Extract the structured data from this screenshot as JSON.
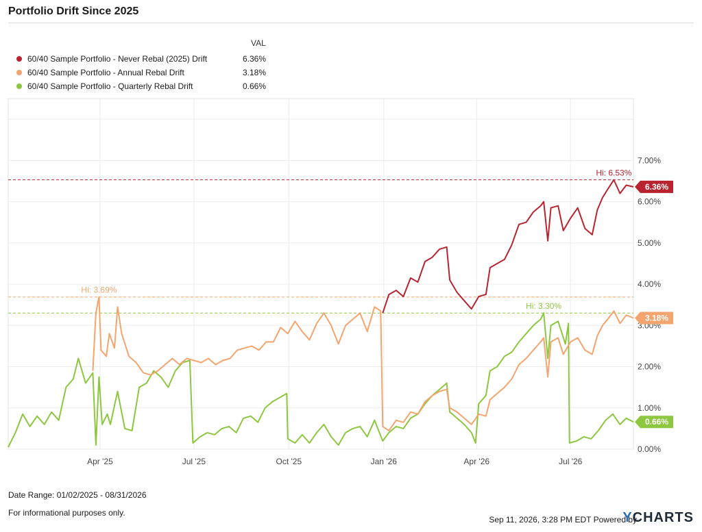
{
  "title": "Portfolio Drift Since 2025",
  "legend": {
    "header": "VAL",
    "items": [
      {
        "label": "60/40 Sample Portfolio - Never Rebal (2025) Drift",
        "value": "6.36%",
        "color": "#b8232f"
      },
      {
        "label": "60/40 Sample Portfolio - Annual Rebal Drift",
        "value": "3.18%",
        "color": "#f4a46e"
      },
      {
        "label": "60/40 Sample Portfolio - Quarterly Rebal Drift",
        "value": "0.66%",
        "color": "#8dc63f"
      }
    ]
  },
  "chart_data": {
    "type": "line",
    "x_ticks": [
      "Apr '25",
      "Jul '25",
      "Oct '25",
      "Jan '26",
      "Apr '26",
      "Jul '26"
    ],
    "y_ticks": [
      "0.00%",
      "1.00%",
      "2.00%",
      "3.00%",
      "4.00%",
      "5.00%",
      "6.00%",
      "7.00%"
    ],
    "ylim": [
      0,
      8.5
    ],
    "x_range": [
      "2025-01-02",
      "2026-08-31"
    ],
    "grid": true,
    "series": [
      {
        "name": "60/40 Sample Portfolio - Never Rebal (2025) Drift",
        "color": "#b8232f",
        "last_label": "6.36%",
        "hi_label": "Hi: 6.53%",
        "hi": 6.53,
        "points": [
          [
            "2025-12-31",
            3.3
          ],
          [
            "2026-01-06",
            3.75
          ],
          [
            "2026-01-13",
            3.85
          ],
          [
            "2026-01-20",
            3.7
          ],
          [
            "2026-01-27",
            4.15
          ],
          [
            "2026-02-03",
            4.05
          ],
          [
            "2026-02-10",
            4.55
          ],
          [
            "2026-02-17",
            4.65
          ],
          [
            "2026-02-24",
            4.85
          ],
          [
            "2026-03-03",
            4.9
          ],
          [
            "2026-03-06",
            4.1
          ],
          [
            "2026-03-13",
            3.8
          ],
          [
            "2026-03-20",
            3.6
          ],
          [
            "2026-03-27",
            3.4
          ],
          [
            "2026-04-03",
            3.7
          ],
          [
            "2026-04-10",
            3.75
          ],
          [
            "2026-04-14",
            4.4
          ],
          [
            "2026-04-21",
            4.5
          ],
          [
            "2026-04-28",
            4.6
          ],
          [
            "2026-05-05",
            4.95
          ],
          [
            "2026-05-12",
            5.45
          ],
          [
            "2026-05-19",
            5.5
          ],
          [
            "2026-05-26",
            5.75
          ],
          [
            "2026-06-02",
            5.9
          ],
          [
            "2026-06-05",
            6.0
          ],
          [
            "2026-06-09",
            5.05
          ],
          [
            "2026-06-12",
            5.85
          ],
          [
            "2026-06-19",
            5.9
          ],
          [
            "2026-06-24",
            5.3
          ],
          [
            "2026-07-01",
            5.6
          ],
          [
            "2026-07-08",
            5.85
          ],
          [
            "2026-07-15",
            5.35
          ],
          [
            "2026-07-22",
            5.2
          ],
          [
            "2026-07-27",
            5.8
          ],
          [
            "2026-08-01",
            6.1
          ],
          [
            "2026-08-06",
            6.3
          ],
          [
            "2026-08-12",
            6.53
          ],
          [
            "2026-08-18",
            6.2
          ],
          [
            "2026-08-24",
            6.4
          ],
          [
            "2026-08-31",
            6.36
          ]
        ]
      },
      {
        "name": "60/40 Sample Portfolio - Annual Rebal Drift",
        "color": "#f4a46e",
        "last_label": "3.18%",
        "hi_label": "Hi: 3.69%",
        "hi": 3.69,
        "points": [
          [
            "2025-03-25",
            1.9
          ],
          [
            "2025-03-28",
            3.3
          ],
          [
            "2025-03-31",
            3.69
          ],
          [
            "2025-04-02",
            2.4
          ],
          [
            "2025-04-07",
            2.25
          ],
          [
            "2025-04-10",
            2.8
          ],
          [
            "2025-04-15",
            2.45
          ],
          [
            "2025-04-18",
            3.45
          ],
          [
            "2025-04-22",
            2.8
          ],
          [
            "2025-04-29",
            2.25
          ],
          [
            "2025-05-06",
            2.1
          ],
          [
            "2025-05-13",
            1.85
          ],
          [
            "2025-05-20",
            1.8
          ],
          [
            "2025-05-27",
            1.9
          ],
          [
            "2025-06-03",
            2.05
          ],
          [
            "2025-06-10",
            2.2
          ],
          [
            "2025-06-17",
            2.05
          ],
          [
            "2025-06-24",
            2.2
          ],
          [
            "2025-07-01",
            2.15
          ],
          [
            "2025-07-08",
            2.1
          ],
          [
            "2025-07-15",
            2.2
          ],
          [
            "2025-07-22",
            2.05
          ],
          [
            "2025-07-29",
            2.15
          ],
          [
            "2025-08-05",
            2.2
          ],
          [
            "2025-08-12",
            2.4
          ],
          [
            "2025-08-19",
            2.45
          ],
          [
            "2025-08-26",
            2.5
          ],
          [
            "2025-09-02",
            2.4
          ],
          [
            "2025-09-09",
            2.6
          ],
          [
            "2025-09-16",
            2.6
          ],
          [
            "2025-09-23",
            2.95
          ],
          [
            "2025-09-30",
            2.8
          ],
          [
            "2025-10-07",
            3.1
          ],
          [
            "2025-10-14",
            2.85
          ],
          [
            "2025-10-21",
            2.65
          ],
          [
            "2025-10-28",
            3.05
          ],
          [
            "2025-11-04",
            3.3
          ],
          [
            "2025-11-11",
            3.0
          ],
          [
            "2025-11-18",
            2.55
          ],
          [
            "2025-11-25",
            3.0
          ],
          [
            "2025-12-02",
            3.15
          ],
          [
            "2025-12-09",
            3.3
          ],
          [
            "2025-12-16",
            2.85
          ],
          [
            "2025-12-23",
            3.45
          ],
          [
            "2025-12-29",
            3.35
          ],
          [
            "2025-12-31",
            0.55
          ],
          [
            "2026-01-06",
            0.45
          ],
          [
            "2026-01-13",
            0.7
          ],
          [
            "2026-01-20",
            0.65
          ],
          [
            "2026-01-27",
            0.9
          ],
          [
            "2026-02-03",
            0.85
          ],
          [
            "2026-02-10",
            1.15
          ],
          [
            "2026-02-17",
            1.3
          ],
          [
            "2026-02-24",
            1.4
          ],
          [
            "2026-03-03",
            1.45
          ],
          [
            "2026-03-06",
            1.0
          ],
          [
            "2026-03-13",
            0.9
          ],
          [
            "2026-03-20",
            0.75
          ],
          [
            "2026-03-27",
            0.6
          ],
          [
            "2026-04-03",
            0.85
          ],
          [
            "2026-04-10",
            0.8
          ],
          [
            "2026-04-14",
            1.2
          ],
          [
            "2026-04-21",
            1.35
          ],
          [
            "2026-04-28",
            1.5
          ],
          [
            "2026-05-05",
            1.7
          ],
          [
            "2026-05-12",
            2.05
          ],
          [
            "2026-05-19",
            2.2
          ],
          [
            "2026-05-26",
            2.4
          ],
          [
            "2026-06-02",
            2.6
          ],
          [
            "2026-06-05",
            2.7
          ],
          [
            "2026-06-09",
            1.75
          ],
          [
            "2026-06-12",
            2.6
          ],
          [
            "2026-06-19",
            2.7
          ],
          [
            "2026-06-24",
            2.3
          ],
          [
            "2026-07-01",
            2.6
          ],
          [
            "2026-07-08",
            2.7
          ],
          [
            "2026-07-15",
            2.4
          ],
          [
            "2026-07-22",
            2.3
          ],
          [
            "2026-07-27",
            2.75
          ],
          [
            "2026-08-01",
            3.0
          ],
          [
            "2026-08-06",
            3.15
          ],
          [
            "2026-08-12",
            3.35
          ],
          [
            "2026-08-18",
            3.05
          ],
          [
            "2026-08-24",
            3.25
          ],
          [
            "2026-08-31",
            3.18
          ]
        ]
      },
      {
        "name": "60/40 Sample Portfolio - Quarterly Rebal Drift",
        "color": "#8dc63f",
        "last_label": "0.66%",
        "hi_label": "Hi: 3.30%",
        "hi": 3.3,
        "points": [
          [
            "2025-01-02",
            0.05
          ],
          [
            "2025-01-09",
            0.4
          ],
          [
            "2025-01-16",
            0.85
          ],
          [
            "2025-01-23",
            0.55
          ],
          [
            "2025-01-30",
            0.8
          ],
          [
            "2025-02-06",
            0.6
          ],
          [
            "2025-02-13",
            0.9
          ],
          [
            "2025-02-20",
            0.7
          ],
          [
            "2025-02-27",
            1.5
          ],
          [
            "2025-03-06",
            1.7
          ],
          [
            "2025-03-11",
            2.2
          ],
          [
            "2025-03-18",
            1.6
          ],
          [
            "2025-03-25",
            1.85
          ],
          [
            "2025-03-28",
            0.1
          ],
          [
            "2025-03-31",
            1.75
          ],
          [
            "2025-04-03",
            0.6
          ],
          [
            "2025-04-08",
            0.85
          ],
          [
            "2025-04-11",
            0.6
          ],
          [
            "2025-04-18",
            1.4
          ],
          [
            "2025-04-25",
            0.5
          ],
          [
            "2025-05-02",
            0.45
          ],
          [
            "2025-05-09",
            1.5
          ],
          [
            "2025-05-16",
            1.6
          ],
          [
            "2025-05-23",
            1.9
          ],
          [
            "2025-05-30",
            1.75
          ],
          [
            "2025-06-06",
            1.5
          ],
          [
            "2025-06-13",
            1.9
          ],
          [
            "2025-06-20",
            2.1
          ],
          [
            "2025-06-27",
            2.15
          ],
          [
            "2025-06-30",
            0.15
          ],
          [
            "2025-07-07",
            0.3
          ],
          [
            "2025-07-14",
            0.4
          ],
          [
            "2025-07-21",
            0.35
          ],
          [
            "2025-07-28",
            0.5
          ],
          [
            "2025-08-04",
            0.55
          ],
          [
            "2025-08-11",
            0.4
          ],
          [
            "2025-08-18",
            0.75
          ],
          [
            "2025-08-25",
            0.8
          ],
          [
            "2025-09-01",
            0.65
          ],
          [
            "2025-09-08",
            1.0
          ],
          [
            "2025-09-15",
            1.15
          ],
          [
            "2025-09-22",
            1.25
          ],
          [
            "2025-09-29",
            1.35
          ],
          [
            "2025-09-30",
            0.25
          ],
          [
            "2025-10-07",
            0.15
          ],
          [
            "2025-10-14",
            0.35
          ],
          [
            "2025-10-21",
            0.15
          ],
          [
            "2025-10-28",
            0.4
          ],
          [
            "2025-11-04",
            0.6
          ],
          [
            "2025-11-11",
            0.3
          ],
          [
            "2025-11-18",
            0.1
          ],
          [
            "2025-11-25",
            0.4
          ],
          [
            "2025-12-02",
            0.5
          ],
          [
            "2025-12-09",
            0.55
          ],
          [
            "2025-12-16",
            0.3
          ],
          [
            "2025-12-23",
            0.7
          ],
          [
            "2025-12-31",
            0.2
          ],
          [
            "2026-01-06",
            0.4
          ],
          [
            "2026-01-13",
            0.55
          ],
          [
            "2026-01-20",
            0.5
          ],
          [
            "2026-01-27",
            0.75
          ],
          [
            "2026-02-03",
            0.85
          ],
          [
            "2026-02-10",
            1.1
          ],
          [
            "2026-02-17",
            1.3
          ],
          [
            "2026-02-24",
            1.45
          ],
          [
            "2026-03-03",
            1.6
          ],
          [
            "2026-03-06",
            0.9
          ],
          [
            "2026-03-13",
            0.75
          ],
          [
            "2026-03-20",
            0.6
          ],
          [
            "2026-03-27",
            0.4
          ],
          [
            "2026-03-31",
            0.15
          ],
          [
            "2026-04-03",
            1.1
          ],
          [
            "2026-04-10",
            1.3
          ],
          [
            "2026-04-14",
            1.9
          ],
          [
            "2026-04-21",
            2.0
          ],
          [
            "2026-04-28",
            2.25
          ],
          [
            "2026-05-05",
            2.35
          ],
          [
            "2026-05-12",
            2.6
          ],
          [
            "2026-05-19",
            2.8
          ],
          [
            "2026-05-26",
            3.0
          ],
          [
            "2026-06-02",
            3.15
          ],
          [
            "2026-06-05",
            3.3
          ],
          [
            "2026-06-09",
            2.2
          ],
          [
            "2026-06-12",
            3.0
          ],
          [
            "2026-06-19",
            3.1
          ],
          [
            "2026-06-26",
            2.55
          ],
          [
            "2026-06-29",
            3.05
          ],
          [
            "2026-06-30",
            0.15
          ],
          [
            "2026-07-07",
            0.2
          ],
          [
            "2026-07-14",
            0.3
          ],
          [
            "2026-07-21",
            0.25
          ],
          [
            "2026-07-28",
            0.45
          ],
          [
            "2026-08-04",
            0.7
          ],
          [
            "2026-08-11",
            0.85
          ],
          [
            "2026-08-18",
            0.6
          ],
          [
            "2026-08-24",
            0.75
          ],
          [
            "2026-08-31",
            0.66
          ]
        ]
      }
    ]
  },
  "footer": {
    "date_range": "Date Range: 01/02/2025 - 08/31/2026",
    "disclaimer": "For informational purposes only.",
    "timestamp": "Sep 11, 2026, 3:28 PM EDT Powered by",
    "brand_y": "Y",
    "brand_rest": "CHARTS"
  }
}
